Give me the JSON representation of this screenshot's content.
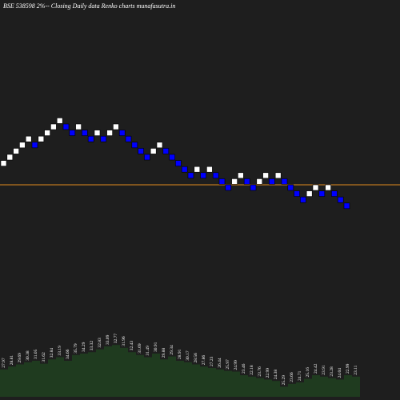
{
  "chart_data": {
    "type": "renko",
    "title": "BSE 538598 2%-- Closing Daily data Renko charts munafasutra.in",
    "values": [
      3,
      4,
      5,
      6,
      7,
      6,
      7,
      8,
      9,
      10,
      9,
      8,
      9,
      8,
      7,
      8,
      7,
      8,
      9,
      8,
      7,
      6,
      5,
      4,
      5,
      6,
      5,
      4,
      3,
      2,
      1,
      2,
      1,
      2,
      1,
      0,
      -1,
      0,
      1,
      0,
      -1,
      0,
      1,
      0,
      1,
      0,
      -1,
      -2,
      -3,
      -2,
      -1,
      -2,
      -1,
      -2,
      -3,
      -4
    ],
    "up_color": "#ffffff",
    "down_color": "#0000ff",
    "reference_line": {
      "value": 0,
      "color": "#e08a1e"
    },
    "volume": {
      "color": "#1f3b1f",
      "ylim": [
        0,
        100
      ],
      "values": [
        38,
        42,
        45,
        48,
        50,
        46,
        52,
        55,
        50,
        58,
        60,
        62,
        66,
        70,
        72,
        68,
        62,
        58,
        55,
        60,
        52,
        56,
        50,
        48,
        45,
        42,
        40,
        38,
        36,
        35,
        30,
        28,
        26,
        24,
        22,
        14,
        18,
        20,
        25,
        30,
        28,
        26,
        24,
        30,
        28
      ],
      "price_labels": [
        27.97,
        28.81,
        29.69,
        30.38,
        31.05,
        31.62,
        32.84,
        33.19,
        34.66,
        35.79,
        34.29,
        33.32,
        32.83,
        33.09,
        32.77,
        31.96,
        32.43,
        31.69,
        31.49,
        30.91,
        29.88,
        29.34,
        28.91,
        30.17,
        28.56,
        27.86,
        27.23,
        26.44,
        25.97,
        24.99,
        23.46,
        22.18,
        23.76,
        22.99,
        24.38,
        25.29,
        23.66,
        24.71,
        25.16,
        24.42,
        23.91,
        23.28,
        24.04,
        22.99,
        23.11
      ]
    }
  }
}
